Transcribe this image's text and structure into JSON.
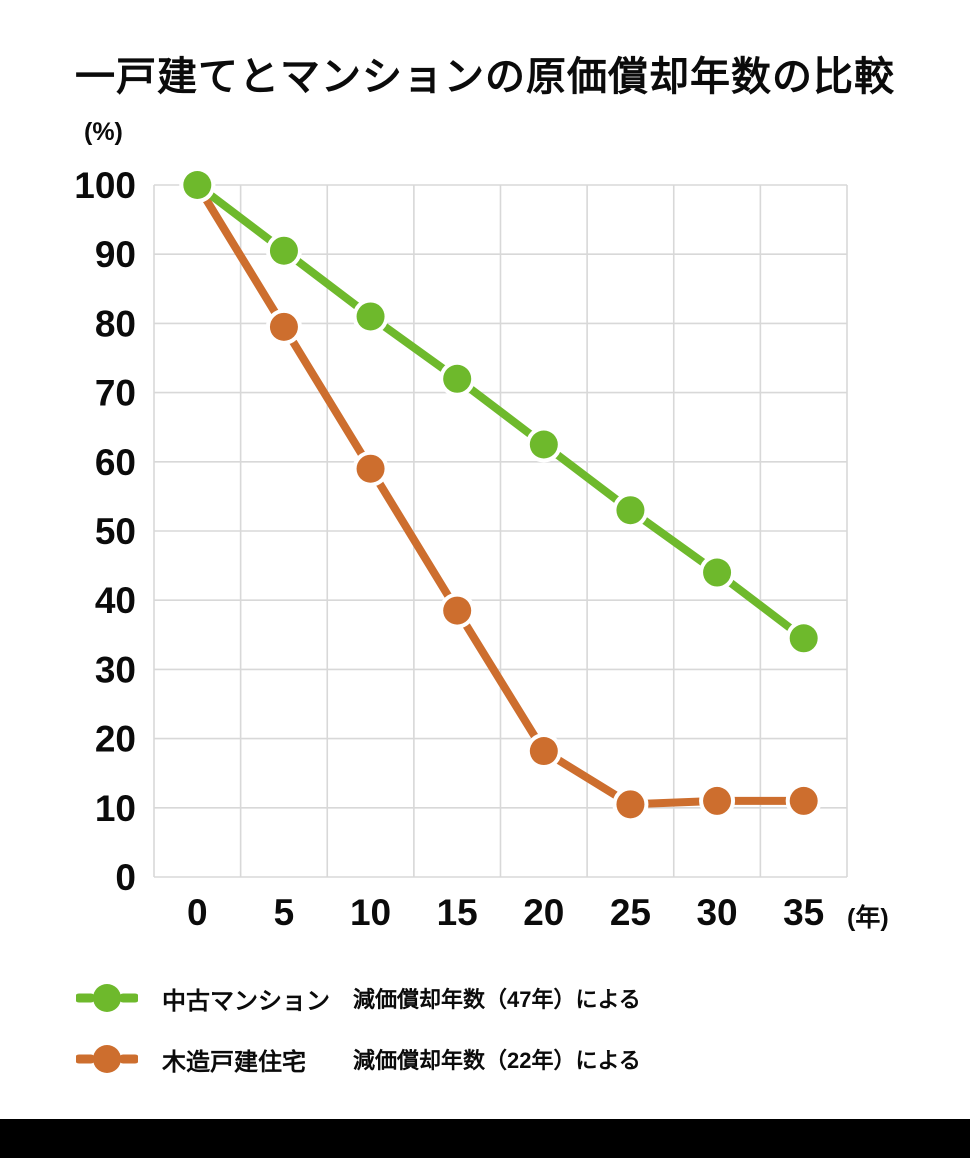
{
  "chart_data": {
    "type": "line",
    "title": "一戸建てとマンションの原価償却年数の比較",
    "y_unit_label": "(%)",
    "x_unit_label": "(年)",
    "x": [
      0,
      5,
      10,
      15,
      20,
      25,
      30,
      35
    ],
    "y_ticks": [
      0,
      10,
      20,
      30,
      40,
      50,
      60,
      70,
      80,
      90,
      100
    ],
    "ylim": [
      0,
      100
    ],
    "grid": true,
    "legend_position": "bottom",
    "series": [
      {
        "name": "中古マンション",
        "note": "減価償却年数（47年）による",
        "color": "#6eb92c",
        "values": [
          100,
          90.5,
          81,
          72,
          62.5,
          53,
          44,
          34.5
        ]
      },
      {
        "name": "木造戸建住宅",
        "note": "減価償却年数（22年）による",
        "color": "#cd6e2e",
        "values": [
          100,
          79.5,
          59,
          38.5,
          18.2,
          10.5,
          11,
          11
        ]
      }
    ]
  },
  "colors": {
    "grid": "#d8d8d8",
    "text": "#0b0b0b",
    "background": "#ffffff",
    "footer_bar": "#000000"
  }
}
